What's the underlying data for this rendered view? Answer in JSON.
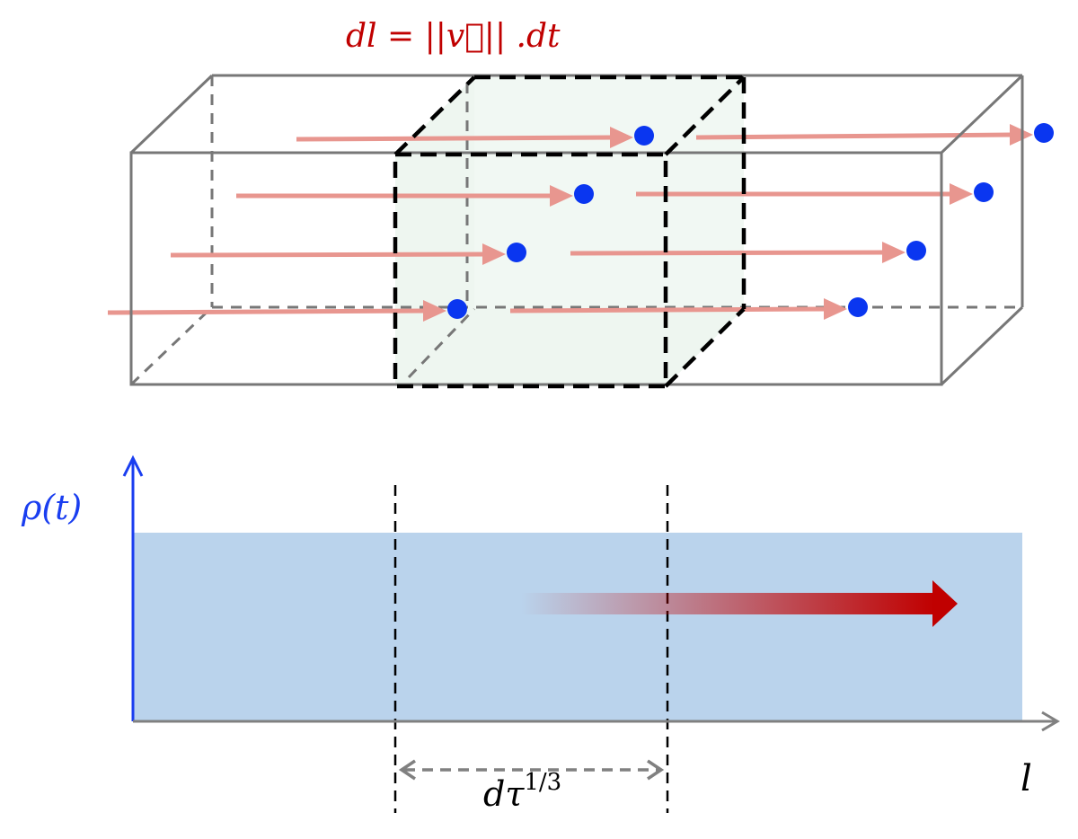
{
  "labels": {
    "top_equation": "dl = ||v⃗|| .dt",
    "top_equation_parts": {
      "lhs": "dl",
      "eq": " = ||",
      "vec": "v",
      "rhs": "|| .dt"
    },
    "density_axis": "ρ(t)",
    "length_axis": "l",
    "cell_width_base": "dτ",
    "cell_width_exponent": "1/3"
  },
  "colors": {
    "equation": "#c00000",
    "particle": "#0a36f0",
    "trajectory": "#e8968f",
    "density_fill": "#bad3ec",
    "cell_fill": "#eef6f0",
    "flow_arrow": "#c00000",
    "axis_y": "#1a3ef0",
    "axis_x": "#808080"
  }
}
